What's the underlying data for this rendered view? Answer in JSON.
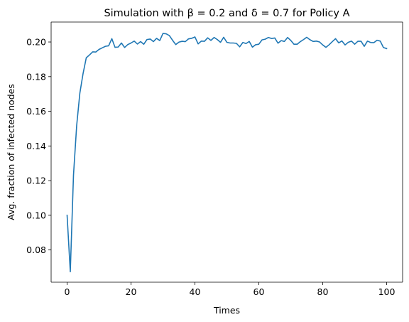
{
  "chart_data": {
    "type": "line",
    "title": "Simulation with β = 0.2 and δ = 0.7 for Policy A",
    "xlabel": "Times",
    "ylabel": "Avg. fraction of infected nodes",
    "xlim": [
      -5,
      105
    ],
    "ylim": [
      0.0614,
      0.2115
    ],
    "xticks": [
      0,
      20,
      40,
      60,
      80,
      100
    ],
    "xtick_labels": [
      "0",
      "20",
      "40",
      "60",
      "80",
      "100"
    ],
    "yticks": [
      0.08,
      0.1,
      0.12,
      0.14,
      0.16,
      0.18,
      0.2
    ],
    "ytick_labels": [
      "0.08",
      "0.10",
      "0.12",
      "0.14",
      "0.16",
      "0.18",
      "0.20"
    ],
    "grid": false,
    "legend": "none",
    "series": [
      {
        "color": "#1f77b4",
        "x": [
          0,
          1,
          2,
          3,
          4,
          5,
          6,
          7,
          8,
          9,
          10,
          11,
          12,
          13,
          14,
          15,
          16,
          17,
          18,
          19,
          20,
          21,
          22,
          23,
          24,
          25,
          26,
          27,
          28,
          29,
          30,
          31,
          32,
          33,
          34,
          35,
          36,
          37,
          38,
          39,
          40,
          41,
          42,
          43,
          44,
          45,
          46,
          47,
          48,
          49,
          50,
          51,
          52,
          53,
          54,
          55,
          56,
          57,
          58,
          59,
          60,
          61,
          62,
          63,
          64,
          65,
          66,
          67,
          68,
          69,
          70,
          71,
          72,
          73,
          74,
          75,
          76,
          77,
          78,
          79,
          80,
          81,
          82,
          83,
          84,
          85,
          86,
          87,
          88,
          89,
          90,
          91,
          92,
          93,
          94,
          95,
          96,
          97,
          98,
          99,
          100
        ],
        "y": [
          0.1,
          0.0674,
          0.1232,
          0.1519,
          0.1706,
          0.1818,
          0.1909,
          0.1925,
          0.1943,
          0.1942,
          0.1957,
          0.1966,
          0.1975,
          0.1978,
          0.2019,
          0.1969,
          0.1971,
          0.1994,
          0.1968,
          0.1985,
          0.1994,
          0.2005,
          0.1988,
          0.2002,
          0.1987,
          0.2014,
          0.2017,
          0.2002,
          0.2021,
          0.2008,
          0.2049,
          0.2047,
          0.2037,
          0.201,
          0.1985,
          0.1999,
          0.2004,
          0.2002,
          0.2018,
          0.2021,
          0.2029,
          0.1989,
          0.2005,
          0.2004,
          0.2024,
          0.2009,
          0.2026,
          0.2014,
          0.1998,
          0.2027,
          0.1998,
          0.1994,
          0.1994,
          0.1992,
          0.1972,
          0.1997,
          0.1991,
          0.2003,
          0.197,
          0.1984,
          0.1987,
          0.2012,
          0.2016,
          0.2026,
          0.202,
          0.2023,
          0.1993,
          0.2008,
          0.2003,
          0.2026,
          0.2009,
          0.1987,
          0.1987,
          0.2002,
          0.2014,
          0.2027,
          0.2013,
          0.2003,
          0.2005,
          0.2,
          0.1983,
          0.1969,
          0.1984,
          0.2002,
          0.2019,
          0.1995,
          0.2006,
          0.1983,
          0.1998,
          0.2005,
          0.1987,
          0.2004,
          0.2004,
          0.1975,
          0.2005,
          0.1997,
          0.1996,
          0.201,
          0.2005,
          0.1968,
          0.1962
        ]
      }
    ]
  }
}
